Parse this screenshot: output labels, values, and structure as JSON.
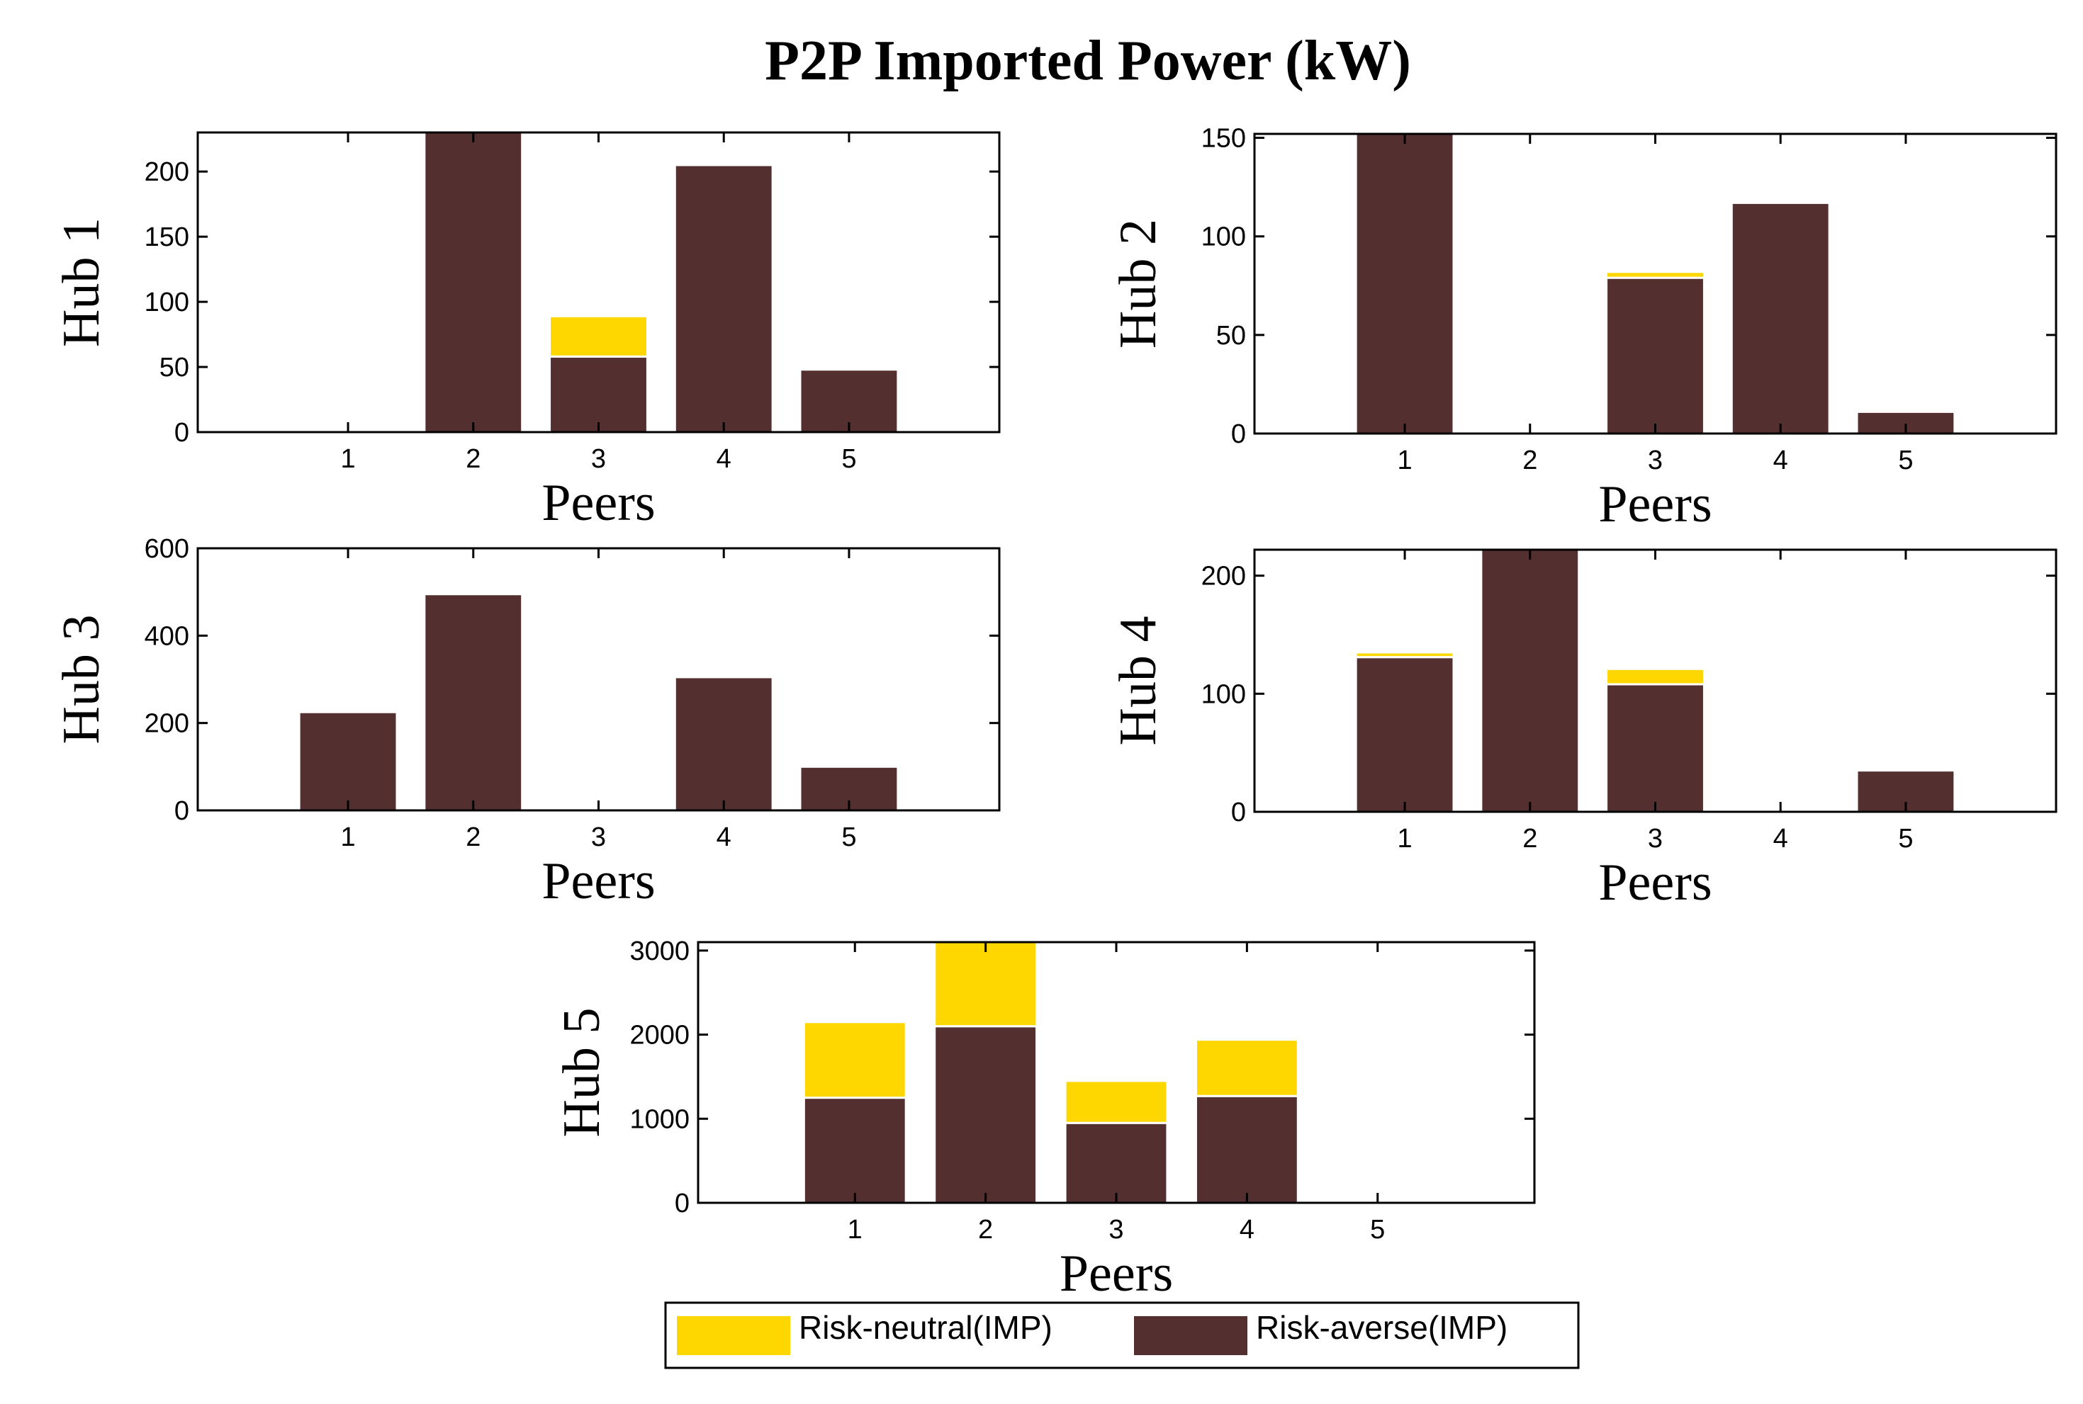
{
  "colors": {
    "risk_neutral": "#FFD700",
    "risk_averse": "#532F2F",
    "axis": "#000000",
    "background": "#FFFFFF"
  },
  "chart_data": {
    "type": "bar",
    "stacked": true,
    "title": "P2P Imported Power (kW)",
    "legend": {
      "placement": "bottom",
      "entries": [
        "Risk-neutral(IMP)",
        "Risk-averse(IMP)"
      ]
    },
    "categories": [
      "1",
      "2",
      "3",
      "4",
      "5"
    ],
    "subplots": [
      {
        "ylabel": "Hub 1",
        "xlabel": "Peers",
        "ylim": [
          0,
          230
        ],
        "xlim": [
          -0.2,
          6.2
        ],
        "yticks": [
          0,
          50,
          100,
          150,
          200
        ],
        "series": [
          {
            "name": "Risk-averse(IMP)",
            "values": [
              0,
              230,
              58,
              205,
              48
            ]
          },
          {
            "name": "Risk-neutral(IMP)",
            "values": [
              0,
              0,
              31,
              0,
              0
            ]
          }
        ]
      },
      {
        "ylabel": "Hub 2",
        "xlabel": "Peers",
        "ylim": [
          0,
          152
        ],
        "xlim": [
          -0.2,
          6.2
        ],
        "yticks": [
          0,
          50,
          100,
          150
        ],
        "series": [
          {
            "name": "Risk-averse(IMP)",
            "values": [
              152,
              0,
              79,
              117,
              11
            ]
          },
          {
            "name": "Risk-neutral(IMP)",
            "values": [
              0,
              0,
              3,
              0,
              0
            ]
          }
        ]
      },
      {
        "ylabel": "Hub 3",
        "xlabel": "Peers",
        "ylim": [
          0,
          600
        ],
        "xlim": [
          -0.2,
          6.2
        ],
        "yticks": [
          0,
          200,
          400,
          600
        ],
        "series": [
          {
            "name": "Risk-averse(IMP)",
            "values": [
              225,
              495,
              0,
              305,
              100
            ]
          },
          {
            "name": "Risk-neutral(IMP)",
            "values": [
              0,
              0,
              0,
              0,
              0
            ]
          }
        ]
      },
      {
        "ylabel": "Hub 4",
        "xlabel": "Peers",
        "ylim": [
          0,
          222
        ],
        "xlim": [
          -0.2,
          6.2
        ],
        "yticks": [
          0,
          100,
          200
        ],
        "series": [
          {
            "name": "Risk-averse(IMP)",
            "values": [
              131,
              222,
              108,
              0,
              35
            ]
          },
          {
            "name": "Risk-neutral(IMP)",
            "values": [
              4,
              0,
              13,
              0,
              0
            ]
          }
        ]
      },
      {
        "ylabel": "Hub 5",
        "xlabel": "Peers",
        "ylim": [
          0,
          3100
        ],
        "xlim": [
          -0.2,
          6.2
        ],
        "yticks": [
          0,
          1000,
          2000,
          3000
        ],
        "series": [
          {
            "name": "Risk-averse(IMP)",
            "values": [
              1250,
              2100,
              950,
              1270,
              0
            ]
          },
          {
            "name": "Risk-neutral(IMP)",
            "values": [
              900,
              1000,
              500,
              670,
              0
            ]
          }
        ]
      }
    ]
  }
}
